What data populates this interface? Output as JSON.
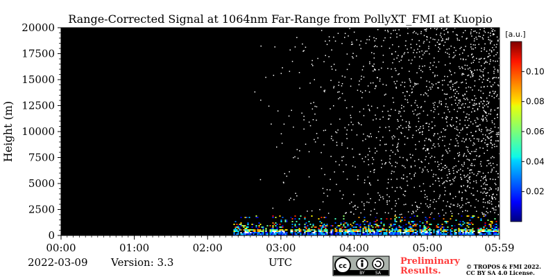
{
  "chart_data": {
    "type": "heatmap",
    "title": "Range-Corrected Signal at 1064nm Far-Range from PollyXT_FMI at Kuopio",
    "ylabel": "Height (m)",
    "xlabel": "UTC",
    "x_range": [
      "00:00",
      "05:59"
    ],
    "x_tick_labels": [
      "00:00",
      "01:00",
      "02:00",
      "03:00",
      "04:00",
      "05:00",
      "05:59"
    ],
    "ylim": [
      0,
      20000
    ],
    "y_ticks": [
      0,
      2500,
      5000,
      7500,
      10000,
      12500,
      15000,
      17500,
      20000
    ],
    "y_tick_labels": [
      "0",
      "2500",
      "5000",
      "7500",
      "10000",
      "12500",
      "15000",
      "17500",
      "20000"
    ],
    "colorbar": {
      "label": "[a.u.]",
      "range": [
        0.0,
        0.12
      ],
      "ticks": [
        0.02,
        0.04,
        0.06,
        0.08,
        0.1
      ],
      "tick_labels": [
        "0.02",
        "0.04",
        "0.06",
        "0.08",
        "0.10"
      ],
      "colormap": "jet"
    },
    "signal_start_time": "02:20",
    "boundary_layer_top_m": 2000,
    "background_color": "#000000"
  },
  "footer": {
    "date": "2022-03-09",
    "version": "Version: 3.3",
    "license_badge": {
      "cc": "cc",
      "by": "BY",
      "sa": "SA"
    },
    "preliminary_line1": "Preliminary",
    "preliminary_line2": "Results.",
    "copyright_line1": "© TROPOS & FMI 2022.",
    "copyright_line2": "CC BY SA 4.0 License.",
    "preliminary_color": "#ff3b3b"
  }
}
